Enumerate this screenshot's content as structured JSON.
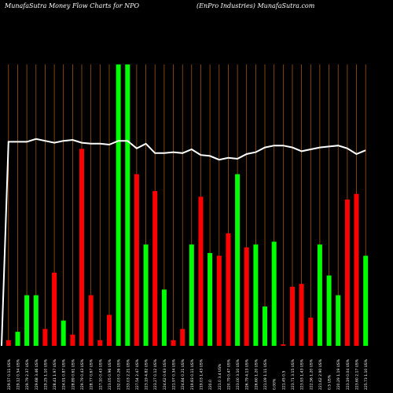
{
  "header": {
    "left_title": "MunafaSutra  Money Flow  Charts for NPO",
    "right_title": "(EnPro  Industries) MunafaSutra.com"
  },
  "colors": {
    "background": "#000000",
    "up_bar": "#00ff00",
    "down_bar": "#ff0000",
    "grid": "#b8600b",
    "price_line": "#ffffff",
    "label": "#ffffff"
  },
  "chart_data": {
    "type": "bar",
    "title": "",
    "series": [
      {
        "kind": "money_flow_bars",
        "values": [
          2,
          5,
          18,
          18,
          6,
          26,
          9,
          4,
          70,
          18,
          2,
          11,
          100,
          100,
          61,
          36,
          55,
          20,
          2,
          6,
          36,
          53,
          33,
          32,
          40,
          61,
          35,
          36,
          14,
          37,
          0.5,
          21,
          22,
          10,
          36,
          25,
          18,
          52,
          54,
          32
        ],
        "direction": [
          "down",
          "up",
          "up",
          "up",
          "down",
          "down",
          "up",
          "down",
          "down",
          "down",
          "down",
          "down",
          "up",
          "up",
          "down",
          "up",
          "down",
          "up",
          "down",
          "down",
          "up",
          "down",
          "up",
          "down",
          "down",
          "up",
          "down",
          "up",
          "up",
          "up",
          "down",
          "down",
          "down",
          "down",
          "up",
          "up",
          "up",
          "down",
          "down",
          "up"
        ]
      },
      {
        "kind": "price_line",
        "values": [
          74,
          74,
          74,
          77,
          75,
          73,
          75,
          76,
          73,
          72,
          72,
          71,
          75,
          75,
          67,
          72,
          62,
          62,
          63,
          62,
          66,
          60,
          59,
          55,
          57,
          56,
          61,
          63,
          68,
          70,
          70,
          68,
          64,
          66,
          68,
          69,
          70,
          67,
          61,
          65
        ]
      }
    ],
    "x_labels": [
      "229.57 0.11 US%",
      "229.12 0.54 US%",
      "229.79 2.37 US%",
      "229.68 3.46 US%",
      "229.25 1.10 US%",
      "228.41 1.97 US%",
      "224.91 0.87 US%",
      "228.89 0.61 US%",
      "229.79 0.43 US%",
      "228.77 0.67 US%",
      "227.10 0.43 US%",
      "223.05 0.96 US%",
      "232.03 0.26 US%",
      "233.03 2.21 US%",
      "227.54 2.47 US%",
      "223.19 4.82 US%",
      "223.27 0.12 US%",
      "224.62 0.63 US%",
      "221.97 0.34 US%",
      "224.84 0.21 US%",
      "219.83 0.11 US%",
      "219.03 1.43 US%",
      "220.0",
      "221.0 3.4 US%",
      "220.79 0.47 US%",
      "223.00 3.10 US%",
      "226.79 4.13 US%",
      "226.60 1.20 US%",
      "221.09 1.11 US%",
      "0.00%",
      "221.45 0.5",
      "223.71 3.15 US%",
      "223.93 1.43 US%",
      "222.56 1.20 US%",
      "221.62 2.90 US%",
      "0.5 US%",
      "220.29 1.19 US%",
      "223.19 0.04 US%",
      "223.60 2.17 US%",
      "225.73 1.10 US%"
    ]
  }
}
